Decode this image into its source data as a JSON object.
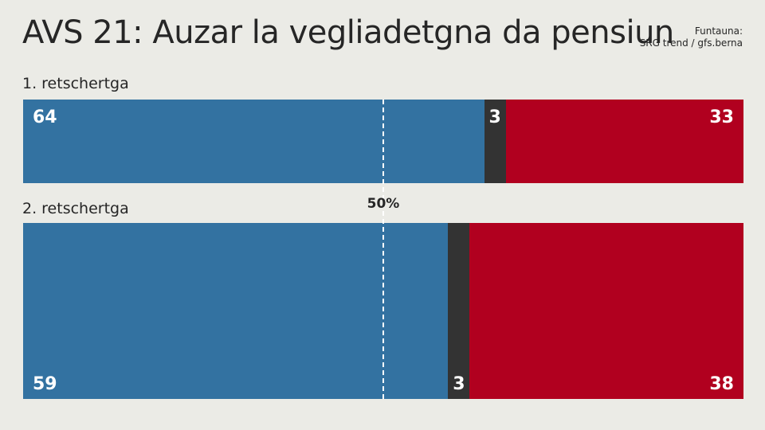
{
  "title": "AVS 21: Auzar la vegliadetgna da pensiun",
  "source": {
    "label": "Funtauna:",
    "text": "SRG trend / gfs.berna"
  },
  "chart_data": {
    "type": "bar",
    "orientation": "horizontal",
    "stacked": true,
    "normalized": "percent",
    "categories": [
      "1. retschertga",
      "2. retschertga"
    ],
    "series": [
      {
        "key": "yes",
        "values": [
          64,
          59
        ],
        "color": "#3372a1"
      },
      {
        "key": "undecided",
        "values": [
          3,
          3
        ],
        "color": "#333333"
      },
      {
        "key": "no",
        "values": [
          33,
          38
        ],
        "color": "#b1001f"
      }
    ],
    "reference_line": {
      "value": 50,
      "label": "50%"
    },
    "xlim": [
      0,
      100
    ]
  }
}
